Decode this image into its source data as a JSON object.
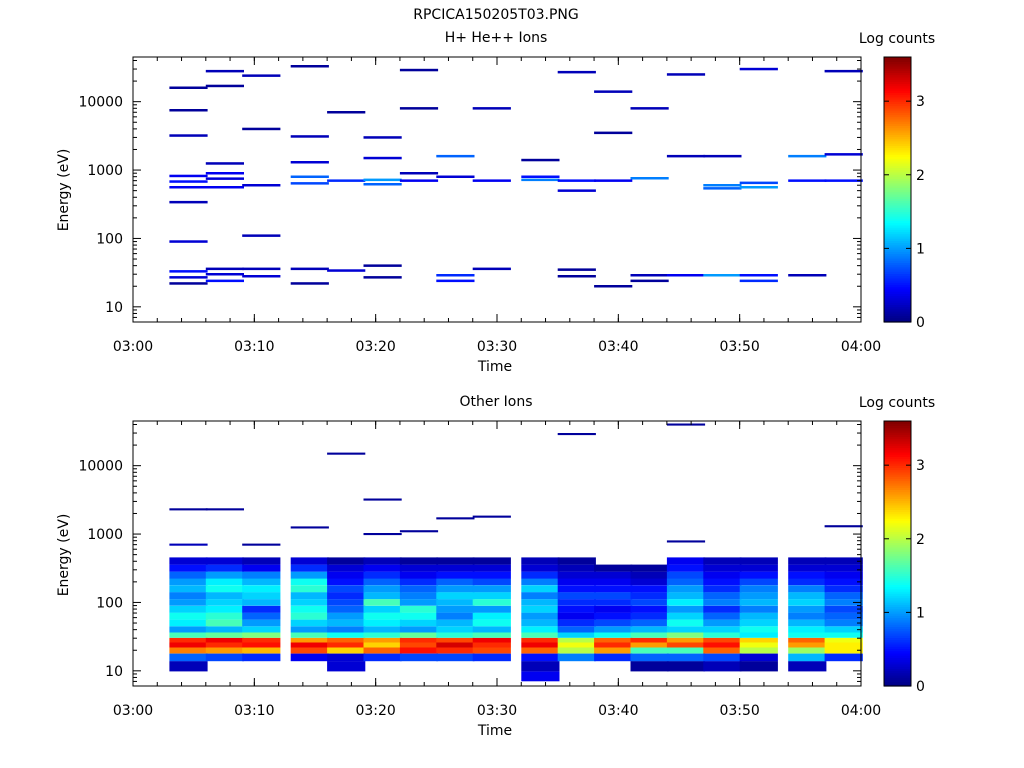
{
  "figure_title": "RPCICA150205T03.PNG",
  "colors": {
    "colormap": [
      "#00007f",
      "#0000ff",
      "#007fff",
      "#00ffff",
      "#7fff7f",
      "#ffff00",
      "#ff7f00",
      "#ff0000",
      "#7f0000"
    ]
  },
  "chart_data": [
    {
      "type": "heatmap",
      "title": "H+ He++ Ions",
      "xlabel": "Time",
      "ylabel": "Energy (eV)",
      "colorbar_label": "Log counts",
      "xlim": [
        "03:00",
        "04:00"
      ],
      "ylim": [
        6,
        45000
      ],
      "yscale": "log",
      "clim": [
        0,
        3.6
      ],
      "x_ticks": [
        "03:00",
        "03:10",
        "03:20",
        "03:30",
        "03:40",
        "03:50",
        "04:00"
      ],
      "y_ticks": [
        "10",
        "100",
        "1000",
        "10000"
      ],
      "colorbar_ticks": [
        "0",
        "1",
        "2",
        "3"
      ],
      "time_bins_start": [
        "03:03",
        "03:06",
        "03:09",
        "03:13",
        "03:16",
        "03:19",
        "03:22",
        "03:25",
        "03:28",
        "03:32",
        "03:35",
        "03:38",
        "03:41",
        "03:44",
        "03:47",
        "03:50",
        "03:54",
        "03:57"
      ],
      "time_bin_minutes": 3.15,
      "note_level": "mostly 0-0.8 log counts, high-energy sparse",
      "cells": [
        {
          "t": 0,
          "e": 22,
          "v": 0.1
        },
        {
          "t": 0,
          "e": 27,
          "v": 0.3
        },
        {
          "t": 0,
          "e": 33,
          "v": 0.5
        },
        {
          "t": 0,
          "e": 90,
          "v": 0.3
        },
        {
          "t": 0,
          "e": 340,
          "v": 0.2
        },
        {
          "t": 0,
          "e": 560,
          "v": 0.4
        },
        {
          "t": 0,
          "e": 680,
          "v": 0.5
        },
        {
          "t": 0,
          "e": 820,
          "v": 0.4
        },
        {
          "t": 0,
          "e": 3200,
          "v": 0.2
        },
        {
          "t": 0,
          "e": 7500,
          "v": 0.1
        },
        {
          "t": 0,
          "e": 16000,
          "v": 0.1
        },
        {
          "t": 1,
          "e": 24,
          "v": 0.5
        },
        {
          "t": 1,
          "e": 30,
          "v": 0.3
        },
        {
          "t": 1,
          "e": 36,
          "v": 0.2
        },
        {
          "t": 1,
          "e": 560,
          "v": 0.4
        },
        {
          "t": 1,
          "e": 750,
          "v": 0.3
        },
        {
          "t": 1,
          "e": 900,
          "v": 0.4
        },
        {
          "t": 1,
          "e": 1250,
          "v": 0.2
        },
        {
          "t": 1,
          "e": 17000,
          "v": 0.1
        },
        {
          "t": 1,
          "e": 28000,
          "v": 0.2
        },
        {
          "t": 2,
          "e": 28,
          "v": 0.3
        },
        {
          "t": 2,
          "e": 36,
          "v": 0.2
        },
        {
          "t": 2,
          "e": 110,
          "v": 0.2
        },
        {
          "t": 2,
          "e": 600,
          "v": 0.3
        },
        {
          "t": 2,
          "e": 4000,
          "v": 0.1
        },
        {
          "t": 2,
          "e": 24000,
          "v": 0.2
        },
        {
          "t": 3,
          "e": 22,
          "v": 0.1
        },
        {
          "t": 3,
          "e": 36,
          "v": 0.2
        },
        {
          "t": 3,
          "e": 640,
          "v": 0.7
        },
        {
          "t": 3,
          "e": 800,
          "v": 0.8
        },
        {
          "t": 3,
          "e": 1300,
          "v": 0.3
        },
        {
          "t": 3,
          "e": 3100,
          "v": 0.2
        },
        {
          "t": 3,
          "e": 33000,
          "v": 0.1
        },
        {
          "t": 4,
          "e": 34,
          "v": 0.3
        },
        {
          "t": 4,
          "e": 700,
          "v": 0.6
        },
        {
          "t": 4,
          "e": 7000,
          "v": 0.1
        },
        {
          "t": 5,
          "e": 27,
          "v": 0.1
        },
        {
          "t": 5,
          "e": 40,
          "v": 0.1
        },
        {
          "t": 5,
          "e": 620,
          "v": 0.8
        },
        {
          "t": 5,
          "e": 720,
          "v": 1.0
        },
        {
          "t": 5,
          "e": 1500,
          "v": 0.3
        },
        {
          "t": 5,
          "e": 3000,
          "v": 0.2
        },
        {
          "t": 6,
          "e": 700,
          "v": 0.4
        },
        {
          "t": 6,
          "e": 900,
          "v": 0.2
        },
        {
          "t": 6,
          "e": 8000,
          "v": 0.1
        },
        {
          "t": 6,
          "e": 29000,
          "v": 0.1
        },
        {
          "t": 7,
          "e": 24,
          "v": 0.5
        },
        {
          "t": 7,
          "e": 29,
          "v": 0.6
        },
        {
          "t": 7,
          "e": 1600,
          "v": 0.8
        },
        {
          "t": 7,
          "e": 800,
          "v": 0.3
        },
        {
          "t": 8,
          "e": 36,
          "v": 0.2
        },
        {
          "t": 8,
          "e": 700,
          "v": 0.4
        },
        {
          "t": 8,
          "e": 8000,
          "v": 0.2
        },
        {
          "t": 9,
          "e": 720,
          "v": 0.9
        },
        {
          "t": 9,
          "e": 1400,
          "v": 0.1
        },
        {
          "t": 9,
          "e": 800,
          "v": 0.5
        },
        {
          "t": 10,
          "e": 28,
          "v": 0.1
        },
        {
          "t": 10,
          "e": 35,
          "v": 0.1
        },
        {
          "t": 10,
          "e": 500,
          "v": 0.3
        },
        {
          "t": 10,
          "e": 700,
          "v": 0.5
        },
        {
          "t": 10,
          "e": 27000,
          "v": 0.2
        },
        {
          "t": 11,
          "e": 20,
          "v": 0.1
        },
        {
          "t": 11,
          "e": 700,
          "v": 0.4
        },
        {
          "t": 11,
          "e": 3500,
          "v": 0.1
        },
        {
          "t": 11,
          "e": 14000,
          "v": 0.2
        },
        {
          "t": 12,
          "e": 24,
          "v": 0.1
        },
        {
          "t": 12,
          "e": 29,
          "v": 0.2
        },
        {
          "t": 12,
          "e": 760,
          "v": 0.9
        },
        {
          "t": 12,
          "e": 8000,
          "v": 0.2
        },
        {
          "t": 13,
          "e": 29,
          "v": 0.4
        },
        {
          "t": 13,
          "e": 1600,
          "v": 0.2
        },
        {
          "t": 13,
          "e": 25000,
          "v": 0.2
        },
        {
          "t": 14,
          "e": 29,
          "v": 1.0
        },
        {
          "t": 14,
          "e": 540,
          "v": 0.8
        },
        {
          "t": 14,
          "e": 600,
          "v": 0.9
        },
        {
          "t": 14,
          "e": 1600,
          "v": 0.2
        },
        {
          "t": 15,
          "e": 24,
          "v": 0.6
        },
        {
          "t": 15,
          "e": 29,
          "v": 0.5
        },
        {
          "t": 15,
          "e": 560,
          "v": 1.0
        },
        {
          "t": 15,
          "e": 650,
          "v": 0.7
        },
        {
          "t": 15,
          "e": 30000,
          "v": 0.3
        },
        {
          "t": 16,
          "e": 29,
          "v": 0.2
        },
        {
          "t": 16,
          "e": 700,
          "v": 0.5
        },
        {
          "t": 16,
          "e": 1600,
          "v": 0.9
        },
        {
          "t": 17,
          "e": 700,
          "v": 0.5
        },
        {
          "t": 17,
          "e": 1700,
          "v": 0.3
        },
        {
          "t": 17,
          "e": 28000,
          "v": 0.2
        }
      ]
    },
    {
      "type": "heatmap",
      "title": "Other Ions",
      "xlabel": "Time",
      "ylabel": "Energy (eV)",
      "colorbar_label": "Log counts",
      "xlim": [
        "03:00",
        "04:00"
      ],
      "ylim": [
        6,
        45000
      ],
      "yscale": "log",
      "clim": [
        0,
        3.6
      ],
      "x_ticks": [
        "03:00",
        "03:10",
        "03:20",
        "03:30",
        "03:40",
        "03:50",
        "04:00"
      ],
      "y_ticks": [
        "10",
        "100",
        "1000",
        "10000"
      ],
      "colorbar_ticks": [
        "0",
        "1",
        "2",
        "3"
      ],
      "time_bins_start": [
        "03:03",
        "03:06",
        "03:09",
        "03:13",
        "03:16",
        "03:19",
        "03:22",
        "03:25",
        "03:28",
        "03:32",
        "03:35",
        "03:38",
        "03:41",
        "03:44",
        "03:47",
        "03:50",
        "03:54",
        "03:57"
      ],
      "time_bin_minutes": 3.15,
      "band_profile_energy": [
        8,
        12,
        16,
        20,
        24,
        28,
        33,
        40,
        50,
        63,
        80,
        100,
        125,
        160,
        200,
        250,
        320,
        400
      ],
      "band_profile_by_bin": [
        [
          0,
          0.2,
          0.8,
          2.7,
          3.2,
          3.0,
          1.6,
          1.0,
          1.3,
          1.4,
          1.2,
          1.0,
          0.9,
          1.1,
          1.0,
          0.8,
          0.5,
          0.3
        ],
        [
          0,
          0,
          0.7,
          2.6,
          3.0,
          3.2,
          1.7,
          1.1,
          1.6,
          1.5,
          1.3,
          1.2,
          1.1,
          1.4,
          1.3,
          1.0,
          0.6,
          0.3
        ],
        [
          0,
          0,
          0.6,
          2.5,
          3.1,
          3.0,
          1.8,
          1.2,
          1.0,
          0.8,
          0.6,
          1.1,
          1.2,
          1.3,
          1.1,
          0.9,
          0.4,
          0.2
        ],
        [
          0,
          0,
          0.4,
          2.9,
          3.2,
          2.6,
          1.6,
          1.0,
          1.2,
          1.5,
          1.4,
          1.2,
          1.1,
          1.5,
          1.4,
          1.0,
          0.6,
          0.3
        ],
        [
          0,
          0.3,
          0.3,
          2.4,
          3.0,
          2.8,
          1.4,
          0.9,
          1.1,
          1.0,
          0.8,
          0.7,
          0.6,
          0.7,
          0.5,
          0.4,
          0.3,
          0.1
        ],
        [
          0,
          0,
          0.6,
          2.8,
          2.4,
          2.6,
          1.5,
          1.1,
          1.3,
          1.4,
          1.2,
          1.6,
          1.1,
          1.0,
          0.8,
          0.6,
          0.4,
          0.2
        ],
        [
          0,
          0,
          0.7,
          3.1,
          2.9,
          3.0,
          1.7,
          1.0,
          1.2,
          1.4,
          1.5,
          1.0,
          0.9,
          0.8,
          0.6,
          0.4,
          0.3,
          0.1
        ],
        [
          0,
          0,
          0.7,
          3.0,
          3.3,
          2.9,
          1.5,
          1.2,
          1.1,
          0.9,
          1.0,
          1.1,
          1.2,
          1.0,
          0.8,
          0.5,
          0.3,
          0.1
        ],
        [
          0,
          0,
          0.6,
          2.9,
          3.0,
          3.2,
          1.6,
          1.1,
          1.4,
          1.3,
          1.0,
          1.5,
          1.2,
          1.0,
          0.7,
          0.5,
          0.3,
          0.1
        ],
        [
          0.4,
          0.2,
          0.5,
          2.8,
          3.2,
          3.0,
          1.6,
          1.3,
          1.1,
          1.0,
          1.2,
          1.1,
          0.9,
          1.2,
          0.9,
          0.6,
          0.3,
          0.2
        ],
        [
          0,
          0,
          0.9,
          2.0,
          2.2,
          2.0,
          1.2,
          0.8,
          0.6,
          0.4,
          0.5,
          0.6,
          0.7,
          0.5,
          0.4,
          0.3,
          0.2,
          0.1
        ],
        [
          0,
          0,
          0.6,
          2.6,
          3.0,
          2.8,
          1.4,
          1.0,
          0.7,
          0.5,
          0.4,
          0.6,
          0.7,
          0.5,
          0.4,
          0.3,
          0.1,
          0
        ],
        [
          0,
          0.1,
          0.8,
          1.6,
          2.6,
          3.0,
          1.6,
          1.1,
          0.8,
          0.6,
          0.5,
          0.7,
          0.6,
          0.5,
          0.3,
          0.2,
          0.1,
          0
        ],
        [
          0,
          0.1,
          0.8,
          1.6,
          2.9,
          2.6,
          1.8,
          1.2,
          1.4,
          1.2,
          1.0,
          1.3,
          1.1,
          1.0,
          0.8,
          0.7,
          0.5,
          0.4
        ],
        [
          0,
          0.2,
          0.7,
          2.8,
          3.1,
          2.9,
          1.5,
          1.2,
          1.0,
          0.8,
          0.6,
          0.9,
          0.8,
          0.6,
          0.5,
          0.4,
          0.3,
          0.2
        ],
        [
          0,
          0.1,
          0.3,
          2.0,
          2.2,
          2.4,
          1.3,
          1.4,
          1.2,
          1.1,
          0.9,
          1.1,
          1.0,
          0.9,
          0.7,
          0.5,
          0.3,
          0.2
        ],
        [
          0,
          0.2,
          1.1,
          1.9,
          2.6,
          2.8,
          1.4,
          1.3,
          1.1,
          0.9,
          1.0,
          1.2,
          1.1,
          0.9,
          0.6,
          0.5,
          0.3,
          0.2
        ],
        [
          0,
          0,
          0.6,
          2.3,
          2.3,
          2.2,
          1.4,
          1.2,
          0.9,
          0.8,
          0.7,
          0.9,
          0.8,
          0.6,
          0.5,
          0.4,
          0.3,
          0.2
        ]
      ],
      "high_energy_cells": [
        {
          "t": 0,
          "e": 700,
          "v": 0.2
        },
        {
          "t": 0,
          "e": 2300,
          "v": 0.1
        },
        {
          "t": 1,
          "e": 2300,
          "v": 0.1
        },
        {
          "t": 2,
          "e": 700,
          "v": 0.1
        },
        {
          "t": 3,
          "e": 1250,
          "v": 0.1
        },
        {
          "t": 4,
          "e": 15000,
          "v": 0.1
        },
        {
          "t": 5,
          "e": 3200,
          "v": 0.1
        },
        {
          "t": 5,
          "e": 1000,
          "v": 0.1
        },
        {
          "t": 6,
          "e": 1100,
          "v": 0.1
        },
        {
          "t": 7,
          "e": 1700,
          "v": 0.1
        },
        {
          "t": 8,
          "e": 1800,
          "v": 0.1
        },
        {
          "t": 10,
          "e": 29000,
          "v": 0.1
        },
        {
          "t": 13,
          "e": 40000,
          "v": 0.1
        },
        {
          "t": 13,
          "e": 780,
          "v": 0.1
        },
        {
          "t": 17,
          "e": 1300,
          "v": 0.1
        }
      ]
    }
  ]
}
